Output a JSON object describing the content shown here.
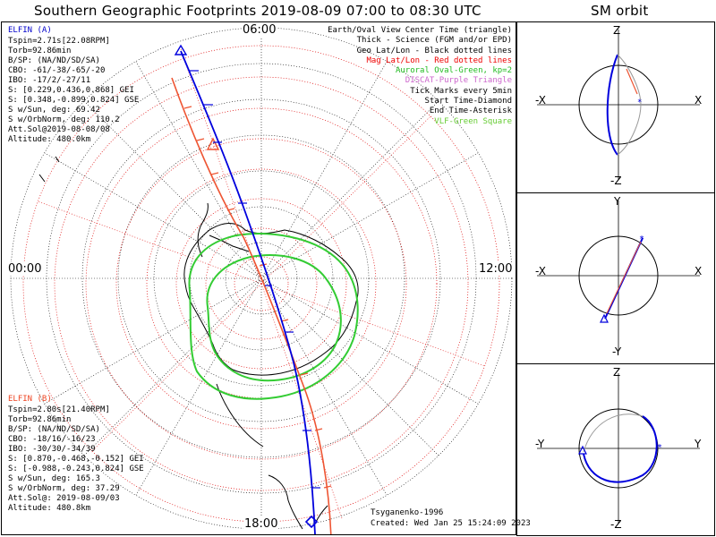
{
  "title": "Southern Geographic Footprints 2019-08-09 07:00 to 08:30 UTC",
  "orbit_title": "SM orbit",
  "clock_labels": {
    "top": "06:00",
    "left": "00:00",
    "right": "12:00",
    "bottom": "18:00"
  },
  "elfin_a": {
    "name": "ELFIN (A)",
    "color": "#0000cc",
    "lines": [
      "Tspin=2.71s[22.08RPM]",
      "Torb=92.86min",
      "B/SP: (NA/ND/SD/SA)",
      "CBO: -61/-38/-65/-20",
      "IBO: -17/2/-27/11",
      "S: [0.229,0.436,0.868] GEI",
      "S: [0.348,-0.899,0.824] GSE",
      "S w/Sun, deg: 69.42",
      "S w/OrbNorm, deg: 110.2",
      "Att.Sol@2019-08-08/08",
      "Altitude: 480.0km"
    ]
  },
  "elfin_b": {
    "name": "ELFIN (B)",
    "color": "#ee4422",
    "lines": [
      "Tspin=2.80s[21.40RPM]",
      "Torb=92.86min",
      "B/SP: (NA/ND/SD/SA)",
      "CBO: -18/16/-16/23",
      "IBO: -30/30/-34/39",
      "S: [0.870,-0.468,-0.152] GEI",
      "S: [-0.988,-0.243,0.824] GSE",
      "S w/Sun, deg: 165.3",
      "S w/OrbNorm, deg: 37.29",
      "Att.Sol@: 2019-08-09/03",
      "Altitude: 480.8km"
    ]
  },
  "legend": [
    {
      "text": "Earth/Oval View Center Time (triangle)",
      "color": "#000000"
    },
    {
      "text": "Thick - Science (FGM and/or EPD)",
      "color": "#000000"
    },
    {
      "text": "Geo Lat/Lon - Black dotted lines",
      "color": "#000000"
    },
    {
      "text": "Mag Lat/Lon - Red dotted lines",
      "color": "#ee0000"
    },
    {
      "text": "Auroral Oval-Green, kp=2",
      "color": "#22bb22"
    },
    {
      "text": "DISCAT-Purple Triangle",
      "color": "#cc66cc"
    },
    {
      "text": "Tick Marks every 5min",
      "color": "#000000"
    },
    {
      "text": "Start Time-Diamond",
      "color": "#000000"
    },
    {
      "text": "End Time-Asterisk",
      "color": "#000000"
    },
    {
      "text": "VLF-Green Square",
      "color": "#66cc33"
    }
  ],
  "model": "Tsyganenko-1996",
  "created": "Created: Wed Jan 25 15:24:09 2023",
  "orbit_panels": [
    {
      "top": "Z",
      "bottom": "-Z",
      "left": "-X",
      "right": "X"
    },
    {
      "top": "Y",
      "bottom": "-Y",
      "left": "-X",
      "right": "X"
    },
    {
      "top": "Z",
      "bottom": "-Z",
      "left": "-Y",
      "right": "Y"
    }
  ]
}
